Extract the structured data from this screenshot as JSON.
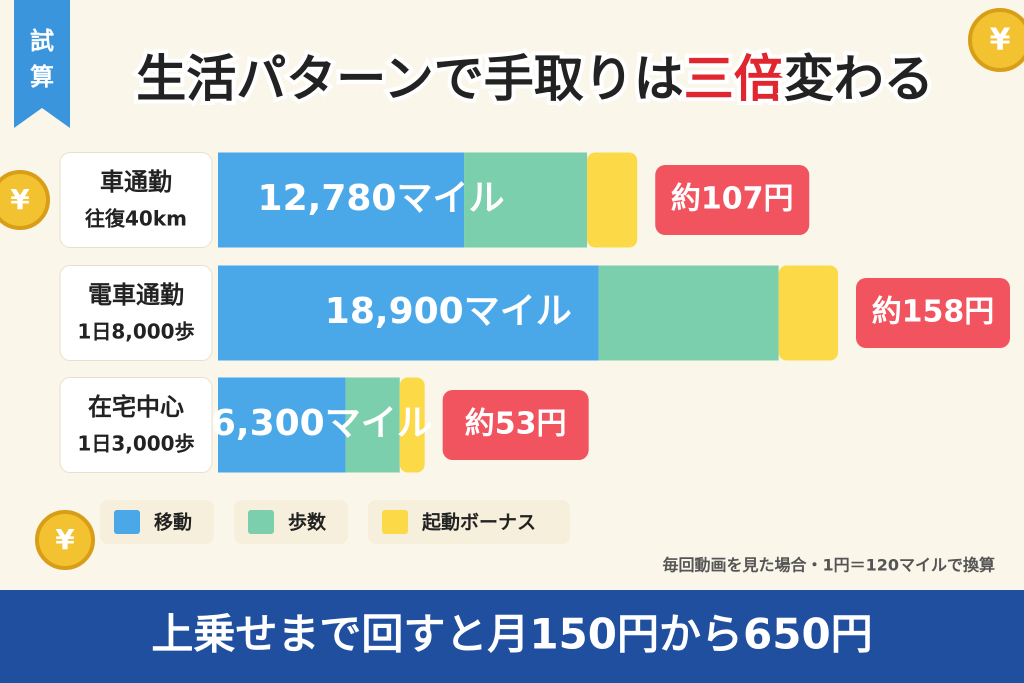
{
  "badge": "試算",
  "coin_symbol": "¥",
  "chart_data": {
    "type": "stacked-bar",
    "title": [
      "生活パターンで手取りは",
      "三倍",
      "変わる"
    ],
    "title_highlight_color": "#e0262e",
    "categories": [
      "車通勤",
      "電車通勤",
      "在宅中心"
    ],
    "category_details": [
      "往復40km",
      "1日8,000歩",
      "1日3,000歩"
    ],
    "series": [
      {
        "name": "移動",
        "color": "#4aa8e8",
        "values": [
          7500,
          11600,
          3890
        ]
      },
      {
        "name": "歩数",
        "color": "#7ccfac",
        "values": [
          3750,
          5490,
          1650
        ]
      },
      {
        "name": "起動ボーナス",
        "color": "#fbd947",
        "values": [
          1530,
          1810,
          760
        ]
      }
    ],
    "totals": [
      12780,
      18900,
      6300
    ],
    "total_labels": [
      "12,780マイル",
      "18,900マイル",
      "6,300マイル"
    ],
    "yen_values": [
      107,
      158,
      53
    ],
    "yen_labels": [
      "約107円",
      "約158円",
      "約53円"
    ],
    "yen_color": "#f2545f",
    "note": "毎回動画を見た場合・1円＝120マイルで換算",
    "footer": "上乗せまで回すと月150円から650円"
  }
}
